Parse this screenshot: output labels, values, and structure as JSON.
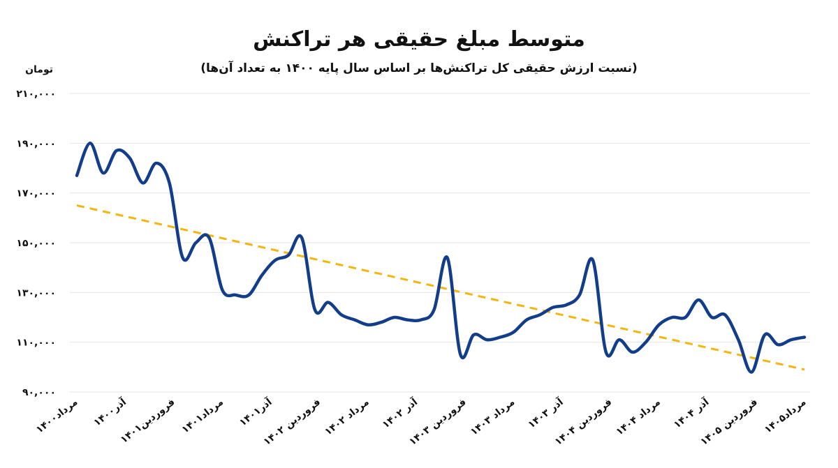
{
  "chart_data": {
    "type": "line",
    "title": "متوسط مبلغ حقیقی هر تراکنش",
    "subtitle": "(نسبت ارزش حقیقی کل تراکنش‌ها بر اساس سال پایه ۱۴۰۰ به تعداد آن‌ها)",
    "ylabel": "تومان",
    "ylim": [
      90000,
      210000
    ],
    "yticks": [
      90000,
      110000,
      130000,
      150000,
      170000,
      190000,
      210000
    ],
    "ytick_labels": [
      "۹۰,۰۰۰",
      "۱۱۰,۰۰۰",
      "۱۳۰,۰۰۰",
      "۱۵۰,۰۰۰",
      "۱۷۰,۰۰۰",
      "۱۹۰,۰۰۰",
      "۲۱۰,۰۰۰"
    ],
    "x_tick_labels": [
      "مرداد۱۴۰۰",
      "آذر۱۴۰۰",
      "فروردین۱۴۰۱",
      "مرداد۱۴۰۱",
      "آذر۱۴۰۱",
      "فروردین ۱۴۰۲",
      "مرداد ۱۴۰۲",
      "آذر ۱۴۰۲",
      "فروردین ۱۴۰۳",
      "مرداد ۱۴۰۳",
      "آذر ۱۴۰۳",
      "فروردین ۱۴۰۴",
      "مرداد ۱۴۰۴",
      "آذر ۱۴۰۴",
      "فروردین ۱۴۰۵",
      "مرداد۱۴۰۵"
    ],
    "grid": true,
    "legend": "none",
    "series": [
      {
        "values": [
          177000,
          190000,
          178000,
          187000,
          184000,
          174000,
          182000,
          174000,
          144000,
          150000,
          152000,
          131000,
          129000,
          129000,
          137000,
          143000,
          145000,
          152000,
          123000,
          126000,
          121000,
          119000,
          117000,
          118000,
          120000,
          119000,
          119000,
          123000,
          144000,
          105000,
          113000,
          111000,
          112000,
          114000,
          119000,
          121000,
          124000,
          125000,
          129000,
          143000,
          106000,
          111000,
          106000,
          110000,
          117000,
          120000,
          120000,
          127000,
          120000,
          121000,
          111000,
          98000,
          113000,
          109000,
          111000,
          112000
        ]
      }
    ],
    "trend": {
      "start": 165000,
      "end": 99000
    },
    "colors": {
      "line": "#123d8a",
      "trend": "#f5b50f",
      "grid": "#e4e4e4"
    }
  }
}
